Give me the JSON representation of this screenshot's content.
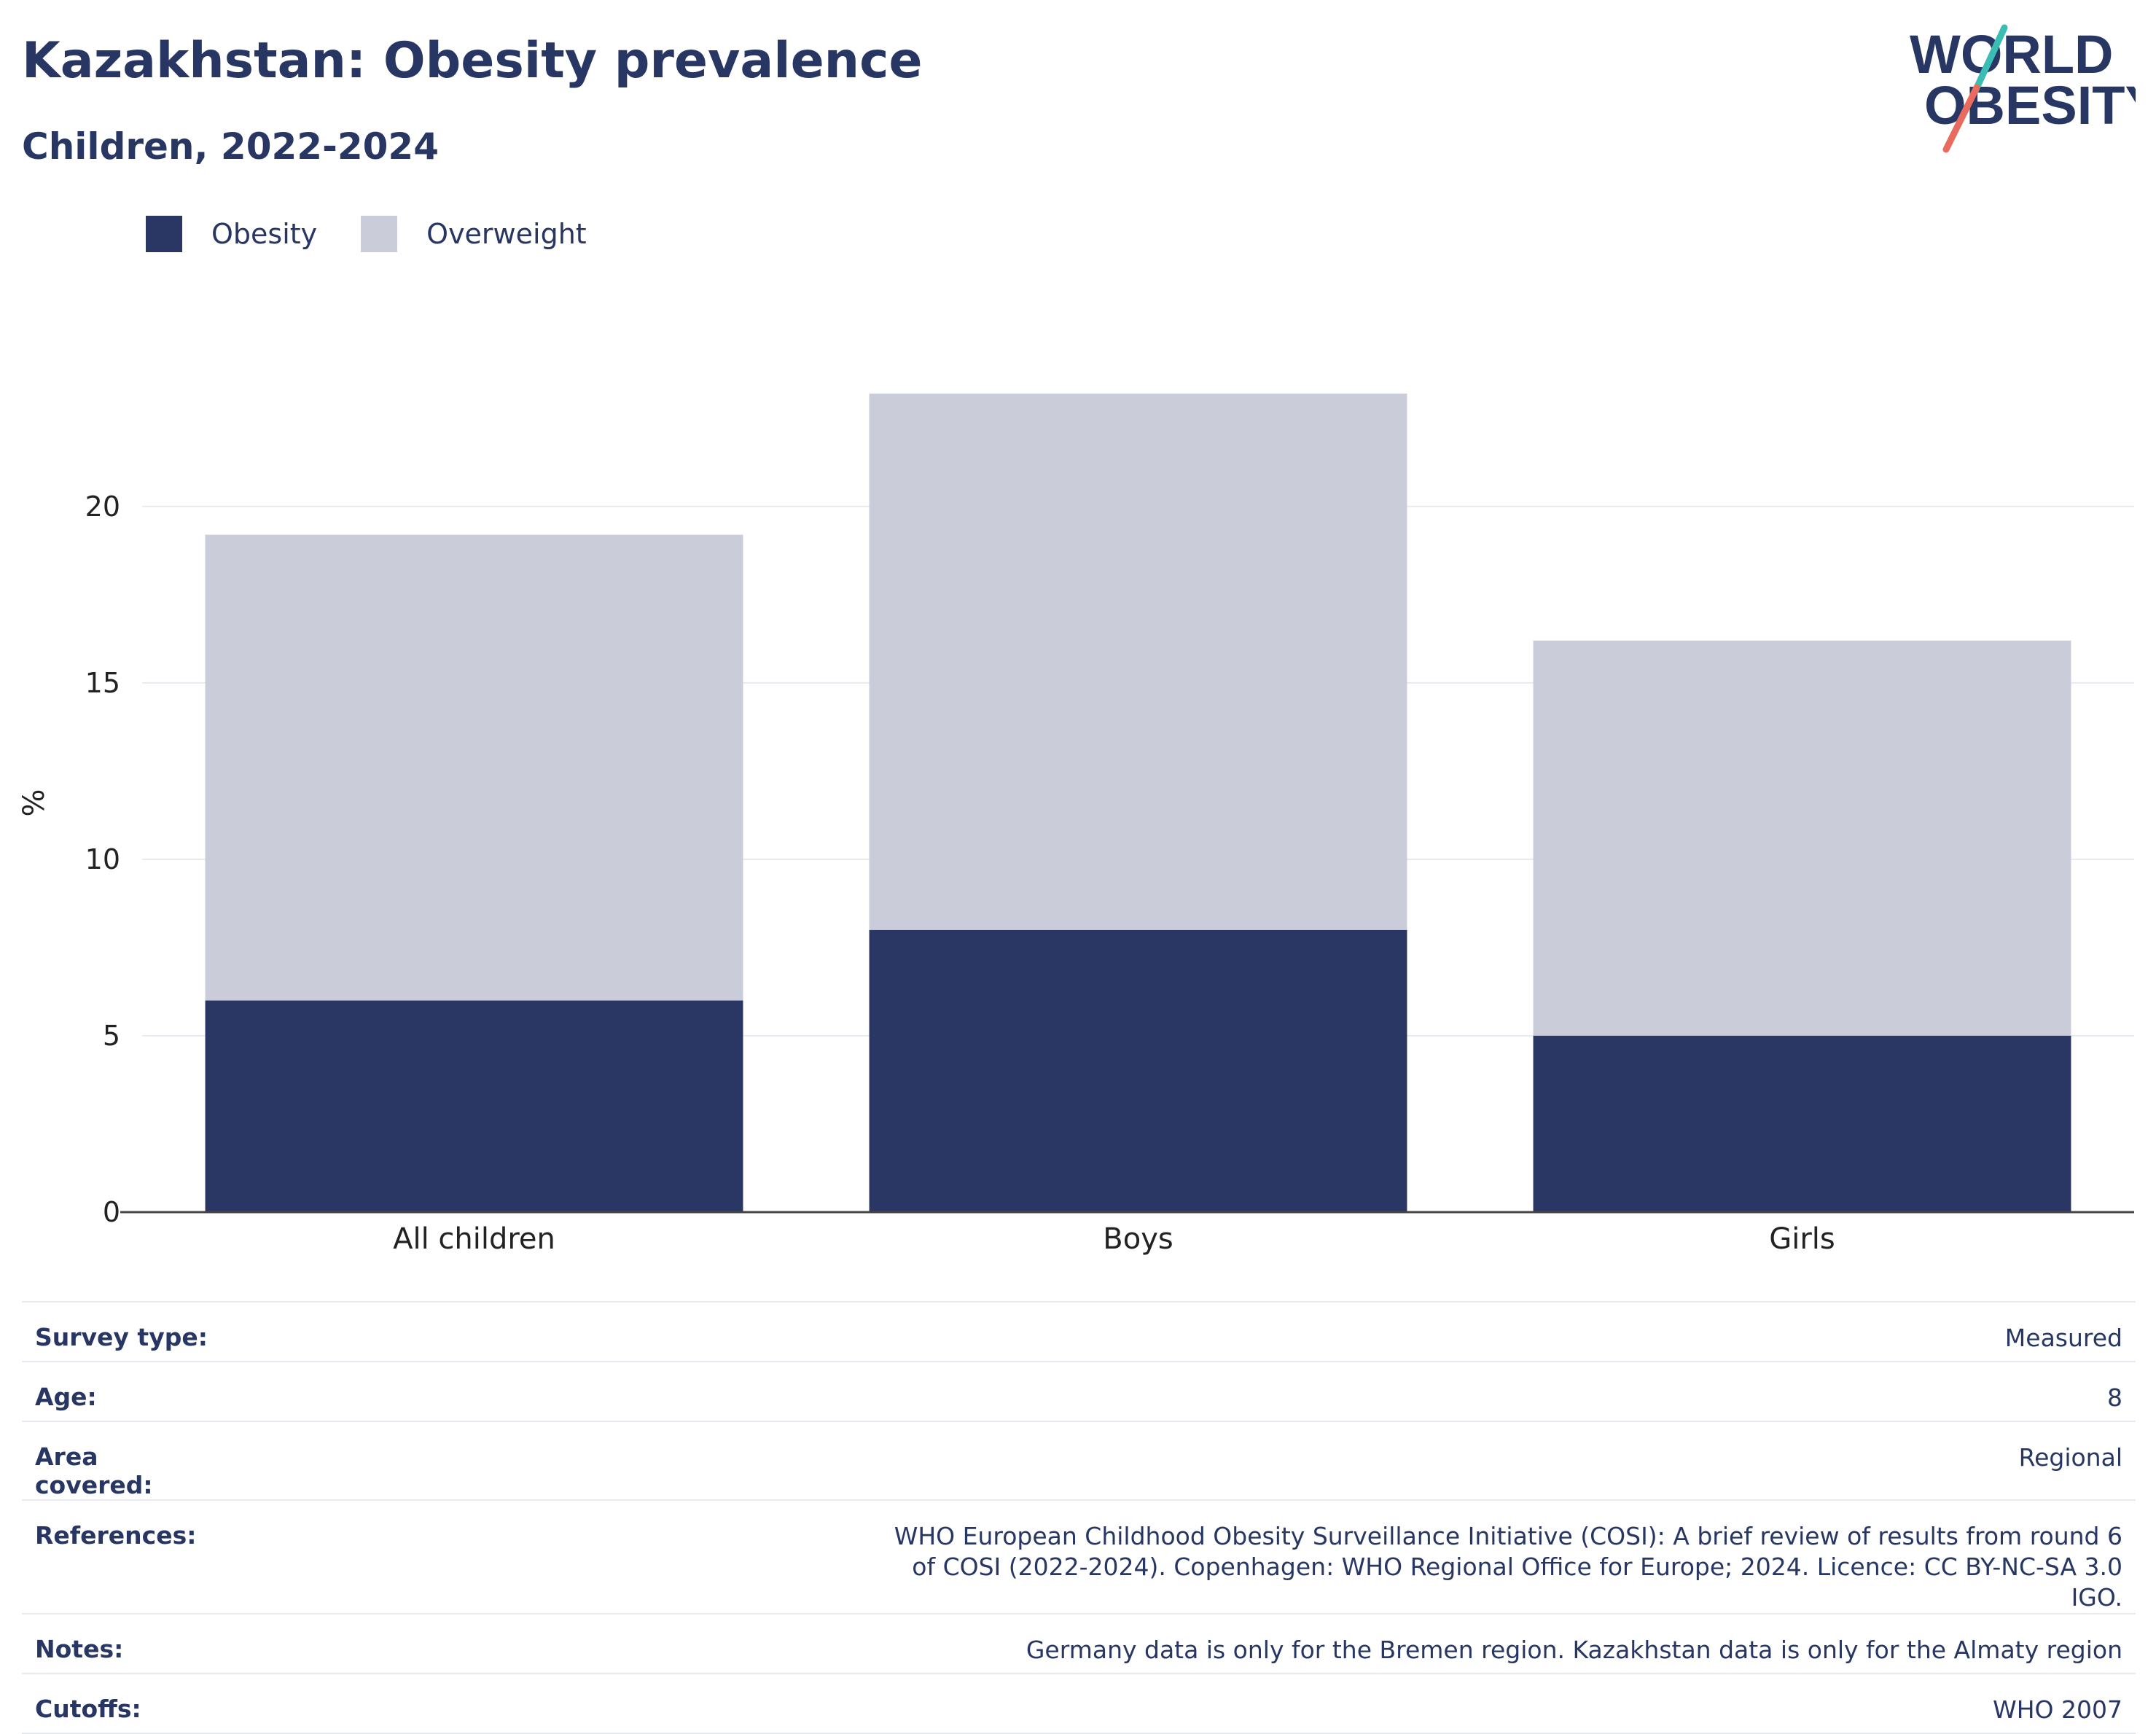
{
  "title": "Kazakhstan: Obesity prevalence",
  "subtitle": "Children, 2022-2024",
  "logo": {
    "line1": "WORLD",
    "line2": "OBESITY"
  },
  "colors": {
    "obesity": "#2a3764",
    "overweight": "#cacdd9",
    "text": "#283663",
    "grid": "#e8eaf2"
  },
  "legend": [
    {
      "name": "Obesity",
      "color": "#2a3764"
    },
    {
      "name": "Overweight",
      "color": "#cacdd9"
    }
  ],
  "chart_data": {
    "type": "bar",
    "stacked": true,
    "categories": [
      "All children",
      "Boys",
      "Girls"
    ],
    "series": [
      {
        "name": "Obesity",
        "values": [
          6.0,
          8.0,
          5.0
        ]
      },
      {
        "name": "Overweight",
        "values": [
          13.2,
          15.2,
          11.2
        ]
      }
    ],
    "ylabel": "%",
    "ylim": [
      0,
      23.2
    ],
    "yticks": [
      0,
      5,
      10,
      15,
      20
    ],
    "grid": true,
    "legend_position": "top-left"
  },
  "info": [
    {
      "label": "Survey type:",
      "value": "Measured"
    },
    {
      "label": "Age:",
      "value": "8"
    },
    {
      "label": "Area covered:",
      "value": "Regional"
    },
    {
      "label": "References:",
      "value": "WHO European Childhood Obesity Surveillance Initiative (COSI): A brief review of results from round 6 of COSI (2022-2024). Copenhagen: WHO Regional Office for Europe; 2024. Licence: CC BY-NC-SA 3.0 IGO."
    },
    {
      "label": "Notes:",
      "value": "Germany data is only for the Bremen region. Kazakhstan data is only for the Almaty region"
    },
    {
      "label": "Cutoffs:",
      "value": "WHO 2007"
    }
  ]
}
